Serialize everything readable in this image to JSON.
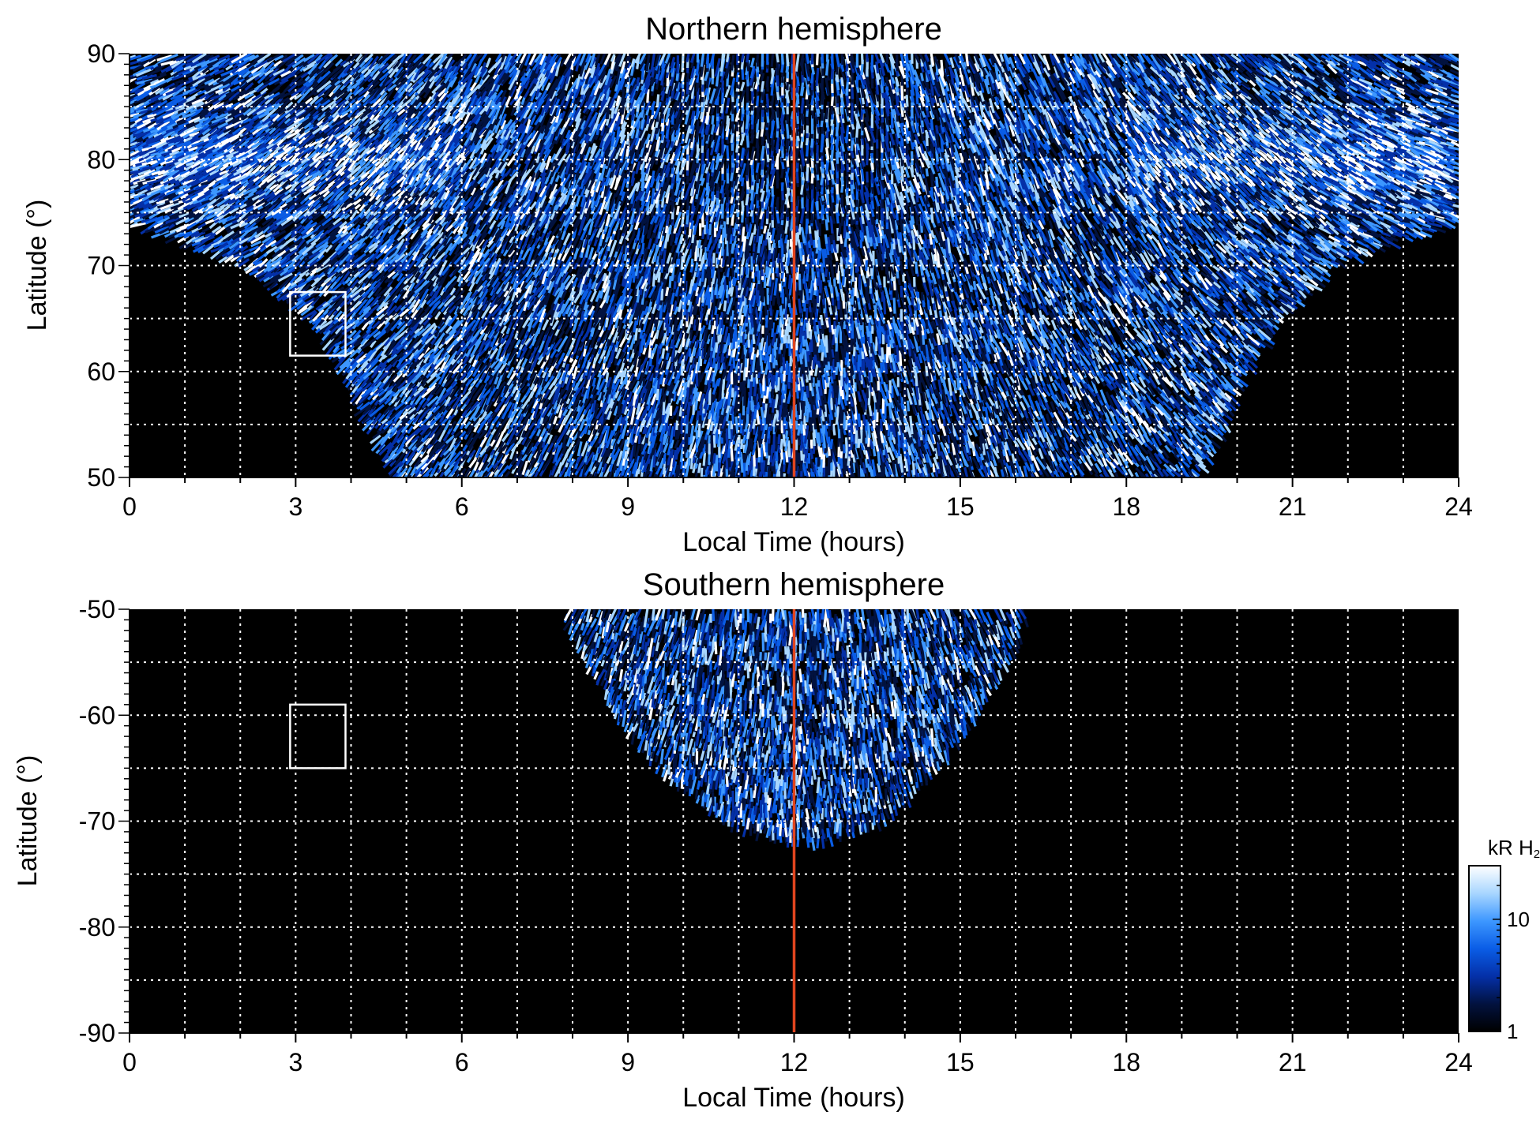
{
  "colors": {
    "background": "#000000",
    "grid": "#ffffff",
    "noon_line": "#e0451f",
    "region_box": "#ffffff",
    "colormap": [
      "#000000",
      "#02123f",
      "#0430a8",
      "#0a5de6",
      "#3d97ff",
      "#a8d6ff",
      "#ffffff"
    ]
  },
  "chart_data": [
    {
      "type": "heatmap",
      "title": "Northern hemisphere",
      "xlabel": "Local Time (hours)",
      "ylabel": "Latitude (°)",
      "xlim": [
        0,
        24
      ],
      "ylim": [
        50,
        90
      ],
      "xticks": [
        "0",
        "3",
        "6",
        "9",
        "12",
        "15",
        "18",
        "21",
        "24"
      ],
      "yticks": [
        "50",
        "60",
        "70",
        "80",
        "90"
      ],
      "grid": true,
      "grid_step_x": 1,
      "grid_step_y": 5,
      "noon_line_x": 12,
      "region_box": {
        "x": [
          2.9,
          3.9
        ],
        "y": [
          61.5,
          67.5
        ]
      },
      "coverage": [
        {
          "lat": 50,
          "lt_min": 4.8,
          "lt_max": 19.3
        },
        {
          "lat": 55,
          "lt_min": 4.3,
          "lt_max": 19.8
        },
        {
          "lat": 60,
          "lt_min": 3.9,
          "lt_max": 20.2
        },
        {
          "lat": 65,
          "lt_min": 3.3,
          "lt_max": 20.8
        },
        {
          "lat": 70,
          "lt_min": 2.1,
          "lt_max": 21.8
        },
        {
          "lat": 74,
          "lt_min": 0.0,
          "lt_max": 24.0
        },
        {
          "lat": 90,
          "lt_min": 0.0,
          "lt_max": 24.0
        }
      ],
      "auroral_band": {
        "lat_center": 80,
        "lt_ranges": [
          [
            0,
            6
          ],
          [
            18,
            24
          ]
        ]
      }
    },
    {
      "type": "heatmap",
      "title": "Southern hemisphere",
      "xlabel": "Local Time (hours)",
      "ylabel": "Latitude (°)",
      "xlim": [
        0,
        24
      ],
      "ylim": [
        -90,
        -50
      ],
      "xticks": [
        "0",
        "3",
        "6",
        "9",
        "12",
        "15",
        "18",
        "21",
        "24"
      ],
      "yticks": [
        "-90",
        "-80",
        "-70",
        "-60",
        "-50"
      ],
      "grid": true,
      "grid_step_x": 1,
      "grid_step_y": 5,
      "noon_line_x": 12,
      "region_box": {
        "x": [
          2.9,
          3.9
        ],
        "y": [
          -65,
          -59
        ]
      },
      "coverage": [
        {
          "lat": -50,
          "lt_min": 7.8,
          "lt_max": 16.3
        },
        {
          "lat": -55,
          "lt_min": 8.3,
          "lt_max": 15.9
        },
        {
          "lat": -60,
          "lt_min": 8.8,
          "lt_max": 15.3
        },
        {
          "lat": -65,
          "lt_min": 9.5,
          "lt_max": 14.6
        },
        {
          "lat": -70,
          "lt_min": 10.8,
          "lt_max": 13.7
        },
        {
          "lat": -72,
          "lt_min": 11.8,
          "lt_max": 12.6
        }
      ]
    }
  ],
  "colorbar": {
    "title_main": "kR H",
    "title_sub": "2",
    "scale": "log",
    "range": [
      1,
      30
    ],
    "ticks": [
      "1",
      "10"
    ]
  }
}
